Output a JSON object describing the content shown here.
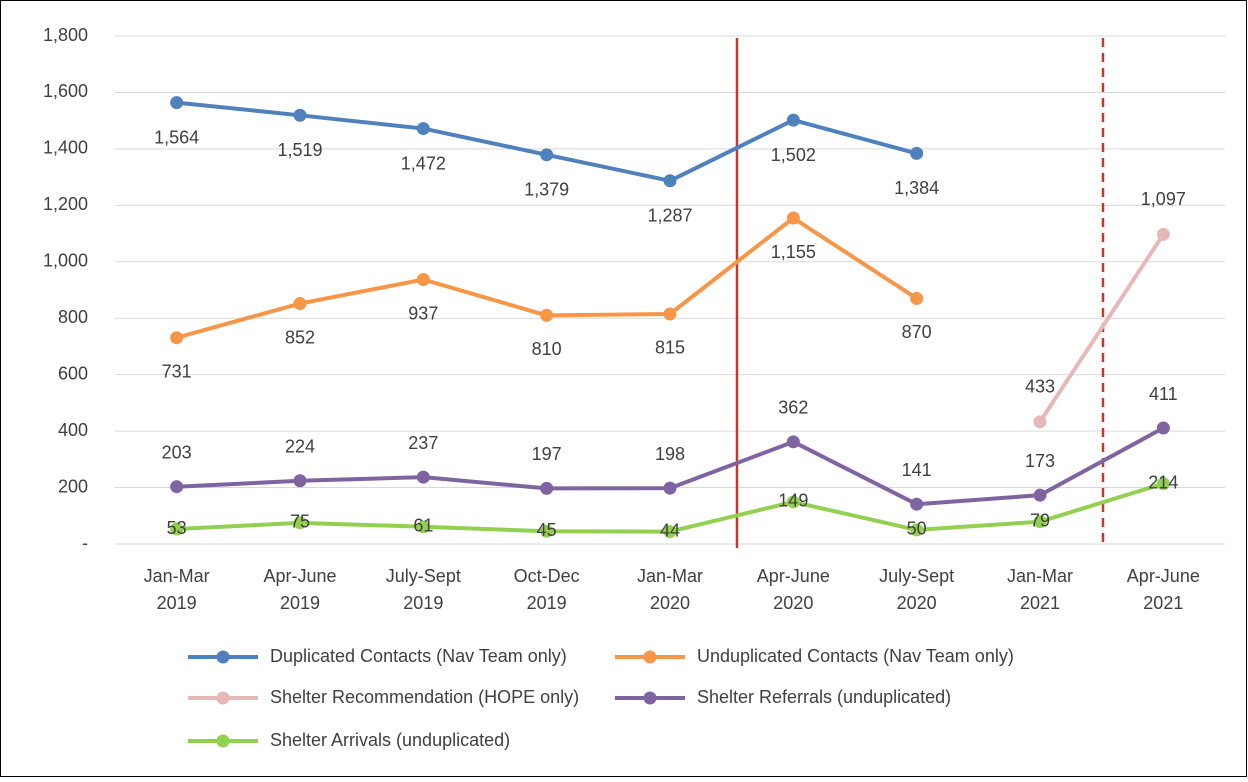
{
  "chart_data": {
    "type": "line",
    "categories": [
      [
        "Jan-Mar",
        "2019"
      ],
      [
        "Apr-June",
        "2019"
      ],
      [
        "July-Sept",
        "2019"
      ],
      [
        "Oct-Dec",
        "2019"
      ],
      [
        "Jan-Mar",
        "2020"
      ],
      [
        "Apr-June",
        "2020"
      ],
      [
        "July-Sept",
        "2020"
      ],
      [
        "Jan-Mar",
        "2021"
      ],
      [
        "Apr-June",
        "2021"
      ]
    ],
    "series": [
      {
        "name": "Duplicated Contacts (Nav Team only)",
        "color": "#4f81bd",
        "values": [
          1564,
          1519,
          1472,
          1379,
          1287,
          1502,
          1384,
          null,
          null
        ],
        "value_labels": [
          "1,564",
          "1,519",
          "1,472",
          "1,379",
          "1,287",
          "1,502",
          "1,384",
          null,
          null
        ]
      },
      {
        "name": "Unduplicated Contacts (Nav Team only)",
        "color": "#f79646",
        "values": [
          731,
          852,
          937,
          810,
          815,
          1155,
          870,
          null,
          null
        ],
        "value_labels": [
          "731",
          "852",
          "937",
          "810",
          "815",
          "1,155",
          "870",
          null,
          null
        ]
      },
      {
        "name": "Shelter Recommendation (HOPE only)",
        "color": "#e6b9b8",
        "values": [
          null,
          null,
          null,
          null,
          null,
          null,
          null,
          433,
          1097
        ],
        "value_labels": [
          null,
          null,
          null,
          null,
          null,
          null,
          null,
          "433",
          "1,097"
        ]
      },
      {
        "name": "Shelter Referrals (unduplicated)",
        "color": "#8064a2",
        "values": [
          203,
          224,
          237,
          197,
          198,
          362,
          141,
          173,
          411
        ]
      },
      {
        "name": "Shelter Arrivals (unduplicated)",
        "color": "#92d050",
        "values": [
          53,
          75,
          61,
          45,
          44,
          149,
          50,
          79,
          214
        ]
      }
    ],
    "ylim": [
      0,
      1800
    ],
    "yticks": [
      {
        "value": 0,
        "label": "-"
      },
      200,
      400,
      600,
      800,
      {
        "value": 1000,
        "label": "1,000"
      },
      {
        "value": 1200,
        "label": "1,200"
      },
      {
        "value": 1400,
        "label": "1,400"
      },
      {
        "value": 1600,
        "label": "1,600"
      },
      {
        "value": 1800,
        "label": "1,800"
      }
    ],
    "grid": true,
    "legend": "bottom"
  }
}
